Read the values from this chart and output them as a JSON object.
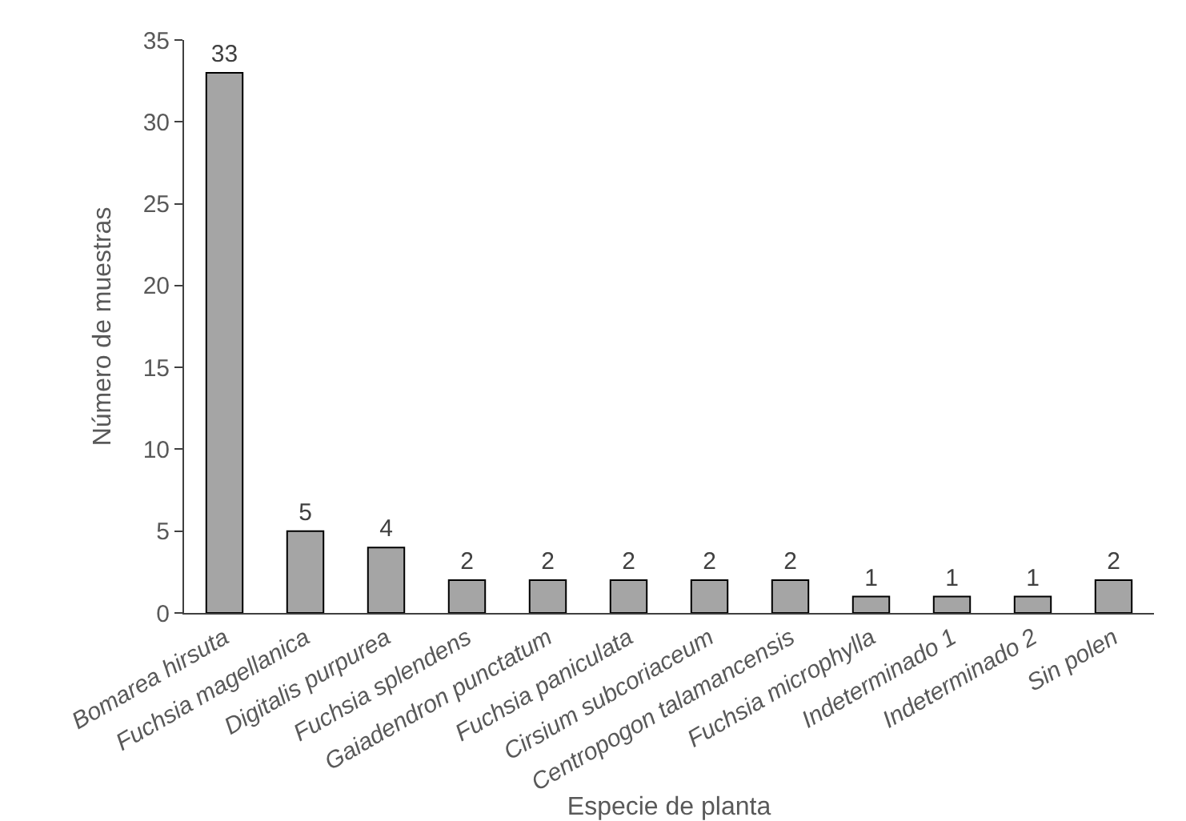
{
  "chart_data": {
    "type": "bar",
    "xlabel": "Especie de planta",
    "ylabel": "Número de muestras",
    "categories": [
      "Bomarea hirsuta",
      "Fuchsia magellanica",
      "Digitalis purpurea",
      "Fuchsia splendens",
      "Gaiadendron punctatum",
      "Fuchsia paniculata",
      "Cirsium subcoriaceum",
      "Centropogon talamancensis",
      "Fuchsia microphylla",
      "Indeterminado 1",
      "Indeterminado 2",
      "Sin polen"
    ],
    "values": [
      33,
      5,
      4,
      2,
      2,
      2,
      2,
      2,
      1,
      1,
      1,
      2
    ],
    "color": "#a5a5a5",
    "ylim": [
      0,
      35
    ],
    "yticks": [
      0,
      5,
      10,
      15,
      20,
      25,
      30,
      35
    ],
    "data_labels": true
  }
}
